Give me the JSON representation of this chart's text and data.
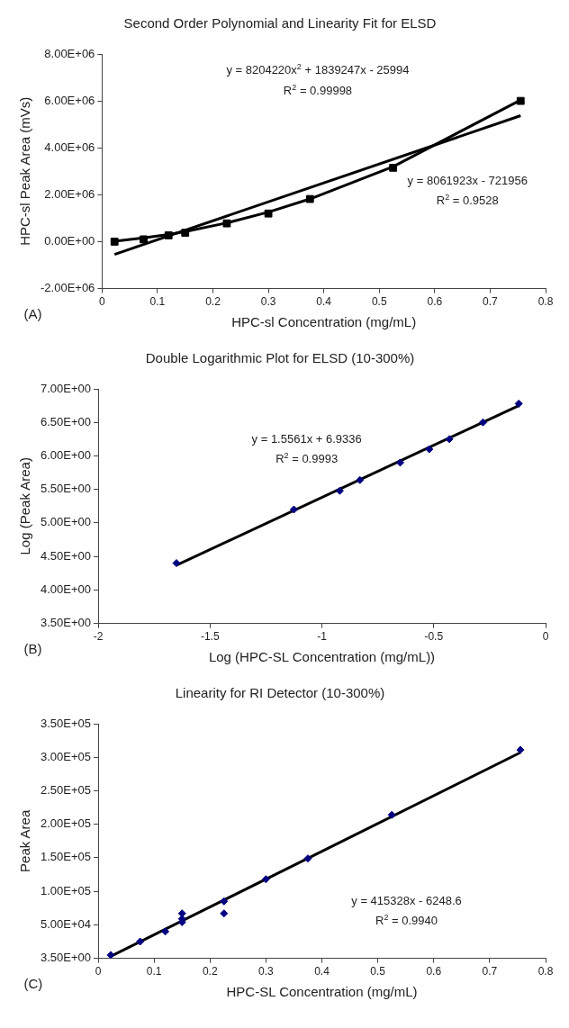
{
  "chart_data": [
    {
      "type": "scatter",
      "title": "Second Order Polynomial and Linearity Fit for ELSD",
      "xlabel": "HPC-sl Concentration (mg/mL)",
      "ylabel": "HPC-sl Peak Area (mVs)",
      "xlim": [
        0,
        0.8
      ],
      "xticks": [
        0,
        0.1,
        0.2,
        0.3,
        0.4,
        0.5,
        0.6,
        0.7,
        0.8
      ],
      "ylim": [
        -2000000,
        8000000
      ],
      "yticks": [
        {
          "value": -2000000,
          "label": "-2.00E+06"
        },
        {
          "value": 0,
          "label": "0.00E+00"
        },
        {
          "value": 2000000,
          "label": "2.00E+06"
        },
        {
          "value": 4000000,
          "label": "4.00E+06"
        },
        {
          "value": 6000000,
          "label": "6.00E+06"
        },
        {
          "value": 8000000,
          "label": "8.00E+06"
        }
      ],
      "grid": false,
      "legend": false,
      "series": [
        {
          "type": "scatter",
          "color": "#000000",
          "marker": "square",
          "x": [
            0.0225,
            0.075,
            0.12,
            0.15,
            0.225,
            0.3,
            0.375,
            0.525,
            0.755
          ],
          "values": [
            0,
            100000,
            270000,
            380000,
            780000,
            1200000,
            1820000,
            3150000,
            6000000
          ]
        },
        {
          "type": "line",
          "color": "#000000",
          "marker": "none",
          "line_style": "solid",
          "x": [
            0.0225,
            0.075,
            0.12,
            0.15,
            0.225,
            0.3,
            0.375,
            0.525,
            0.755
          ],
          "values": [
            20000,
            160000,
            310000,
            430000,
            800000,
            1260000,
            1820000,
            3200000,
            6040000
          ]
        },
        {
          "type": "line",
          "color": "#000000",
          "marker": "none",
          "line_style": "solid",
          "x": [
            0.0225,
            0.755
          ],
          "values": [
            -540000,
            5370000
          ]
        }
      ],
      "annotations": [
        "y = 8204220x$^{2}$ + 1839247x - 25994",
        "R$^{2}$ = 0.99998",
        "y = 8061923x - 721956",
        "R$^{2}$ = 0.9528",
        "(A)"
      ]
    },
    {
      "type": "scatter",
      "title": "Double Logarithmic Plot for ELSD (10-300%)",
      "xlabel": "Log (HPC-SL Concentration (mg/mL))",
      "ylabel": "Log (Peak Area)",
      "xlim": [
        -2,
        0
      ],
      "xticks": [
        -2,
        -1.5,
        -1,
        -0.5,
        0
      ],
      "ylim": [
        3.5,
        7
      ],
      "yticks": [
        {
          "value": 3.5,
          "label": "3.50E+00"
        },
        {
          "value": 4,
          "label": "4.00E+00"
        },
        {
          "value": 4.5,
          "label": "4.50E+00"
        },
        {
          "value": 5,
          "label": "5.00E+00"
        },
        {
          "value": 5.5,
          "label": "5.50E+00"
        },
        {
          "value": 6,
          "label": "6.00E+00"
        },
        {
          "value": 6.5,
          "label": "6.50E+00"
        },
        {
          "value": 7,
          "label": "7.00E+00"
        }
      ],
      "grid": false,
      "legend": false,
      "series": [
        {
          "type": "line",
          "color": "#000000",
          "marker": "none",
          "line_style": "solid",
          "x": [
            -1.65,
            -0.12
          ],
          "values": [
            4.37,
            6.75
          ]
        },
        {
          "type": "scatter",
          "color": "#000080",
          "marker": "diamond",
          "x": [
            -1.65,
            -1.125,
            -0.92,
            -0.83,
            -0.65,
            -0.52,
            -0.43,
            -0.28,
            -0.12
          ],
          "values": [
            4.4,
            5.2,
            5.48,
            5.64,
            5.9,
            6.1,
            6.25,
            6.5,
            6.78
          ]
        }
      ],
      "annotations": [
        "y = 1.5561x + 6.9336",
        "R$^{2}$ = 0.9993",
        "(B)"
      ]
    },
    {
      "type": "scatter",
      "title": "Linearity for RI Detector (10-300%)",
      "xlabel": "HPC-SL Concentration (mg/mL)",
      "ylabel": "Peak Area",
      "xlim": [
        0,
        0.8
      ],
      "xticks": [
        0,
        0.1,
        0.2,
        0.3,
        0.4,
        0.5,
        0.6,
        0.7,
        0.8
      ],
      "ylim": [
        3.5,
        350000
      ],
      "yticks": [
        {
          "value": 3.5,
          "label": "3.50E+00"
        },
        {
          "value": 50000,
          "label": "5.00E+04"
        },
        {
          "value": 100000,
          "label": "1.00E+05"
        },
        {
          "value": 150000,
          "label": "1.50E+05"
        },
        {
          "value": 200000,
          "label": "2.00E+05"
        },
        {
          "value": 250000,
          "label": "2.50E+05"
        },
        {
          "value": 300000,
          "label": "3.00E+05"
        },
        {
          "value": 350000,
          "label": "3.50E+05"
        }
      ],
      "grid": false,
      "legend": false,
      "series": [
        {
          "type": "line",
          "color": "#000000",
          "marker": "none",
          "line_style": "solid",
          "x": [
            0.0225,
            0.755
          ],
          "values": [
            3000,
            307000
          ]
        },
        {
          "type": "scatter",
          "color": "#000080",
          "marker": "diamond",
          "x": [
            0.0225,
            0.075,
            0.12,
            0.15,
            0.15,
            0.15,
            0.225,
            0.225,
            0.3,
            0.375,
            0.525,
            0.755
          ],
          "values": [
            5000,
            25000,
            40000,
            67000,
            59000,
            54000,
            85000,
            67000,
            118000,
            149000,
            214000,
            311000
          ]
        }
      ],
      "annotations": [
        "y = 415328x - 6248.6",
        "R$^{2}$ = 0.9940",
        "(C)"
      ]
    }
  ]
}
